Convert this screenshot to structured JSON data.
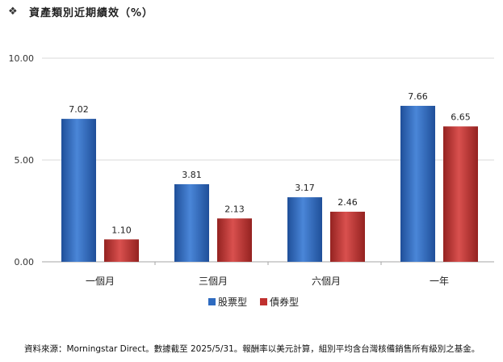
{
  "header": {
    "bullet": "❖",
    "title": "資產類別近期績效（%）"
  },
  "chart_data": {
    "type": "bar",
    "categories": [
      "一個月",
      "三個月",
      "六個月",
      "一年"
    ],
    "series": [
      {
        "name": "股票型",
        "values": [
          7.02,
          3.81,
          3.17,
          7.66
        ],
        "color": "#2E6BC0",
        "label_values": [
          "7.02",
          "3.81",
          "3.17",
          "7.66"
        ]
      },
      {
        "name": "債券型",
        "values": [
          1.1,
          2.13,
          2.46,
          6.65
        ],
        "color": "#C0302E",
        "label_values": [
          "1.10",
          "2.13",
          "2.46",
          "6.65"
        ]
      }
    ],
    "yticks": [
      "0.00",
      "5.00",
      "10.00"
    ],
    "ylim": [
      0,
      10
    ],
    "grid": true,
    "legend_position": "bottom"
  },
  "footnote": "資料來源：Morningstar Direct。數據截至 2025/5/31。報酬率以美元計算，組別平均含台灣核備銷售所有級別之基金。"
}
